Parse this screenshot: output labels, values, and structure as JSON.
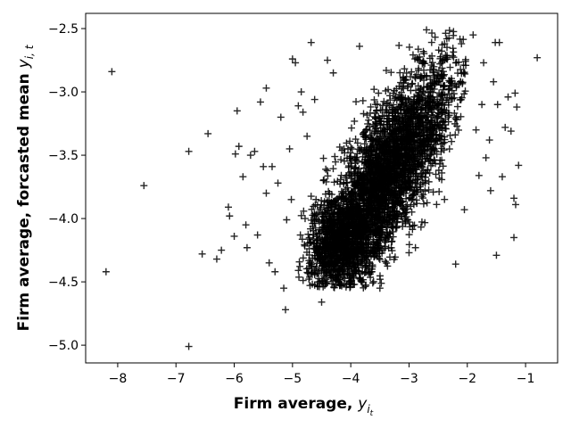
{
  "chart_data": {
    "type": "scatter",
    "marker": "+",
    "marker_color": "#000000",
    "xlabel_text": "Firm average, ",
    "xlabel_var": "y",
    "xlabel_sub": "i",
    "xlabel_subsub": "t",
    "ylabel_text": "Firm average, forcasted mean ",
    "ylabel_var": "y",
    "ylabel_sub": "i, t",
    "xlim": [
      -8.55,
      -0.45
    ],
    "ylim": [
      -5.14,
      -2.38
    ],
    "xticks": [
      -8,
      -7,
      -6,
      -5,
      -4,
      -3,
      -2,
      -1
    ],
    "xtick_labels": [
      "−8",
      "−7",
      "−6",
      "−5",
      "−4",
      "−3",
      "−2",
      "−1"
    ],
    "yticks": [
      -5.0,
      -4.5,
      -4.0,
      -3.5,
      -3.0,
      -2.5
    ],
    "ytick_labels": [
      "−5.0",
      "−4.5",
      "−4.0",
      "−3.5",
      "−3.0",
      "−2.5"
    ],
    "grid": false,
    "dense_cluster": {
      "description_x_center": -3.5,
      "y_center": -3.7,
      "x_range": [
        -4.9,
        -2.0
      ],
      "y_range": [
        -4.55,
        -2.5
      ],
      "slope": 0.75,
      "count": 3200
    },
    "outliers": [
      {
        "x": -8.2,
        "y": -4.42
      },
      {
        "x": -8.1,
        "y": -2.84
      },
      {
        "x": -7.55,
        "y": -3.74
      },
      {
        "x": -6.78,
        "y": -3.47
      },
      {
        "x": -6.78,
        "y": -5.01
      },
      {
        "x": -6.55,
        "y": -4.28
      },
      {
        "x": -6.45,
        "y": -3.33
      },
      {
        "x": -6.3,
        "y": -4.32
      },
      {
        "x": -6.22,
        "y": -4.25
      },
      {
        "x": -6.1,
        "y": -3.91
      },
      {
        "x": -6.08,
        "y": -3.98
      },
      {
        "x": -6.0,
        "y": -4.14
      },
      {
        "x": -5.98,
        "y": -3.49
      },
      {
        "x": -5.95,
        "y": -3.15
      },
      {
        "x": -5.92,
        "y": -3.43
      },
      {
        "x": -5.85,
        "y": -3.67
      },
      {
        "x": -5.8,
        "y": -4.05
      },
      {
        "x": -5.78,
        "y": -4.23
      },
      {
        "x": -5.72,
        "y": -3.5
      },
      {
        "x": -5.65,
        "y": -3.47
      },
      {
        "x": -5.6,
        "y": -4.13
      },
      {
        "x": -5.55,
        "y": -3.08
      },
      {
        "x": -5.5,
        "y": -3.59
      },
      {
        "x": -5.45,
        "y": -2.97
      },
      {
        "x": -5.45,
        "y": -3.8
      },
      {
        "x": -5.4,
        "y": -4.35
      },
      {
        "x": -5.35,
        "y": -3.59
      },
      {
        "x": -5.3,
        "y": -4.42
      },
      {
        "x": -5.25,
        "y": -3.72
      },
      {
        "x": -5.2,
        "y": -3.2
      },
      {
        "x": -5.15,
        "y": -4.55
      },
      {
        "x": -5.12,
        "y": -4.72
      },
      {
        "x": -5.1,
        "y": -4.01
      },
      {
        "x": -5.05,
        "y": -3.45
      },
      {
        "x": -5.02,
        "y": -3.85
      },
      {
        "x": -5.0,
        "y": -2.74
      },
      {
        "x": -4.95,
        "y": -2.77
      },
      {
        "x": -4.9,
        "y": -3.11
      },
      {
        "x": -4.85,
        "y": -3.0
      },
      {
        "x": -4.82,
        "y": -3.16
      },
      {
        "x": -4.75,
        "y": -3.35
      },
      {
        "x": -4.68,
        "y": -2.61
      },
      {
        "x": -4.62,
        "y": -3.06
      },
      {
        "x": -4.5,
        "y": -4.66
      },
      {
        "x": -4.4,
        "y": -2.75
      },
      {
        "x": -4.3,
        "y": -2.85
      },
      {
        "x": -3.85,
        "y": -2.64
      },
      {
        "x": -3.8,
        "y": -4.37
      },
      {
        "x": -3.5,
        "y": -4.55
      },
      {
        "x": -3.45,
        "y": -4.25
      },
      {
        "x": -3.0,
        "y": -4.27
      },
      {
        "x": -2.7,
        "y": -2.51
      },
      {
        "x": -2.2,
        "y": -4.36
      },
      {
        "x": -2.1,
        "y": -2.62
      },
      {
        "x": -2.05,
        "y": -3.93
      },
      {
        "x": -1.9,
        "y": -2.55
      },
      {
        "x": -1.85,
        "y": -3.3
      },
      {
        "x": -1.8,
        "y": -3.66
      },
      {
        "x": -1.75,
        "y": -3.1
      },
      {
        "x": -1.72,
        "y": -2.77
      },
      {
        "x": -1.68,
        "y": -3.52
      },
      {
        "x": -1.62,
        "y": -3.38
      },
      {
        "x": -1.6,
        "y": -3.78
      },
      {
        "x": -1.55,
        "y": -2.92
      },
      {
        "x": -1.52,
        "y": -2.61
      },
      {
        "x": -1.5,
        "y": -4.29
      },
      {
        "x": -1.48,
        "y": -3.1
      },
      {
        "x": -1.45,
        "y": -2.61
      },
      {
        "x": -1.4,
        "y": -3.67
      },
      {
        "x": -1.35,
        "y": -3.28
      },
      {
        "x": -1.3,
        "y": -3.04
      },
      {
        "x": -1.25,
        "y": -3.31
      },
      {
        "x": -1.2,
        "y": -4.15
      },
      {
        "x": -1.2,
        "y": -3.84
      },
      {
        "x": -1.18,
        "y": -3.01
      },
      {
        "x": -1.17,
        "y": -3.89
      },
      {
        "x": -1.15,
        "y": -3.12
      },
      {
        "x": -1.12,
        "y": -3.58
      },
      {
        "x": -0.8,
        "y": -2.73
      }
    ]
  }
}
